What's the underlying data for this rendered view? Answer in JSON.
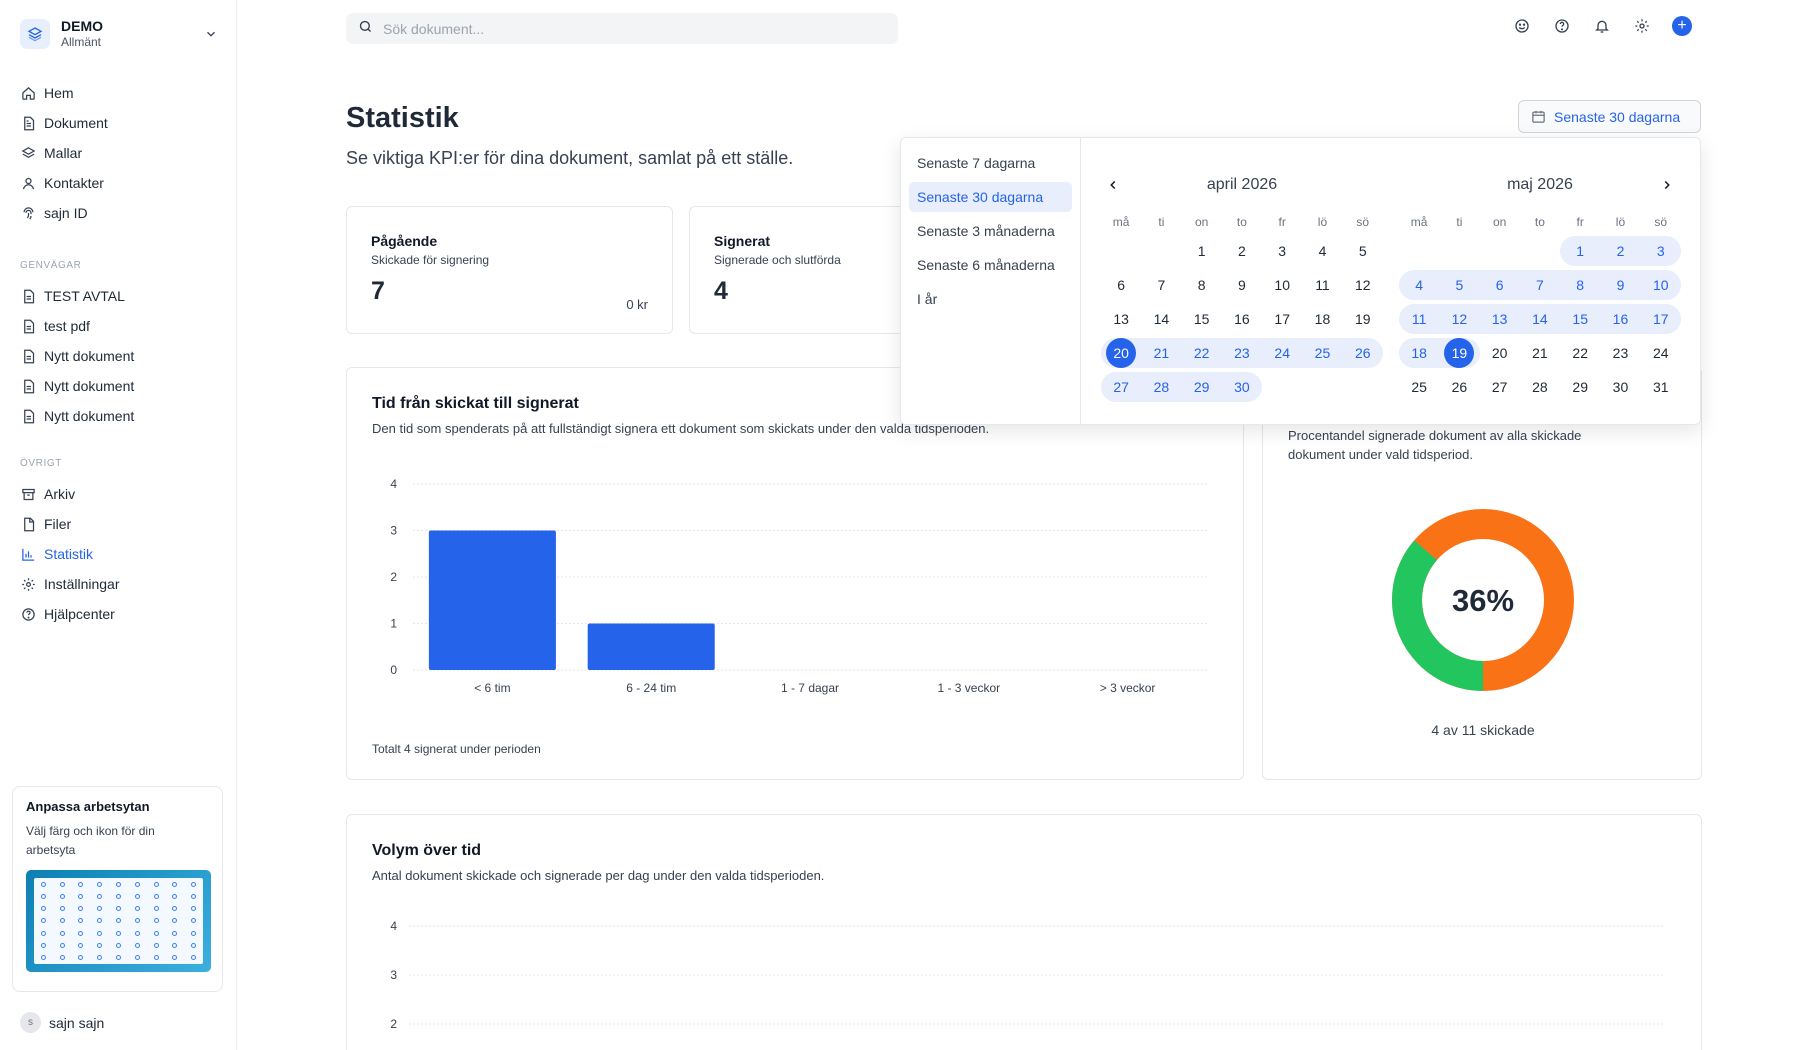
{
  "workspace": {
    "name": "DEMO",
    "subtitle": "Allmänt"
  },
  "nav": {
    "main": [
      {
        "label": "Hem",
        "icon": "home-icon"
      },
      {
        "label": "Dokument",
        "icon": "document-icon"
      },
      {
        "label": "Mallar",
        "icon": "layers-icon"
      },
      {
        "label": "Kontakter",
        "icon": "user-icon"
      },
      {
        "label": "sajn ID",
        "icon": "fingerprint-icon"
      }
    ],
    "shortcuts_title": "GENVÄGAR",
    "shortcuts": [
      {
        "label": "TEST AVTAL"
      },
      {
        "label": "test pdf"
      },
      {
        "label": "Nytt dokument"
      },
      {
        "label": "Nytt dokument"
      },
      {
        "label": "Nytt dokument"
      }
    ],
    "other_title": "ÖVRIGT",
    "other": [
      {
        "label": "Arkiv",
        "icon": "archive-icon"
      },
      {
        "label": "Filer",
        "icon": "file-icon"
      },
      {
        "label": "Statistik",
        "icon": "bar-chart-icon",
        "active": true
      },
      {
        "label": "Inställningar",
        "icon": "gear-icon"
      },
      {
        "label": "Hjälpcenter",
        "icon": "help-icon"
      }
    ]
  },
  "promo": {
    "title": "Anpassa arbetsytan",
    "text": "Välj färg och ikon för din arbetsyta"
  },
  "user": {
    "initial": "s",
    "name": "sajn sajn"
  },
  "search": {
    "placeholder": "Sök dokument..."
  },
  "page": {
    "title": "Statistik",
    "subtitle": "Se viktiga KPI:er för dina dokument, samlat på ett ställe."
  },
  "range_button": {
    "label": "Senaste 30 dagarna"
  },
  "kpis": [
    {
      "title": "Pågående",
      "subtitle": "Skickade för signering",
      "value": "7",
      "amount": "0 kr"
    },
    {
      "title": "Signerat",
      "subtitle": "Signerade och slutförda",
      "value": "4"
    }
  ],
  "time_chart": {
    "title": "Tid från skickat till signerat",
    "subtitle": "Den tid som spenderats på att fullständigt signera ett dokument som skickats under den valda tidsperioden.",
    "footer": "Totalt 4 signerat under perioden"
  },
  "donut": {
    "subtitle": "Procentandel signerade dokument av alla skickade dokument under vald tidsperiod.",
    "percent_label": "36%",
    "caption": "4 av 11 skickade",
    "signed": 4,
    "total": 11,
    "colors": {
      "signed": "#22c55e",
      "unsigned": "#f97316"
    }
  },
  "volume_chart": {
    "title": "Volym över tid",
    "subtitle": "Antal dokument skickade och signerade per dag under den valda tidsperioden.",
    "yticks": [
      "4",
      "3",
      "2"
    ]
  },
  "chart_data": {
    "type": "bar",
    "title": "Tid från skickat till signerat",
    "categories": [
      "< 6 tim",
      "6 - 24 tim",
      "1 - 7 dagar",
      "1 - 3 veckor",
      "> 3 veckor"
    ],
    "values": [
      3,
      1,
      0,
      0,
      0
    ],
    "yticks": [
      "0",
      "1",
      "2",
      "3",
      "4"
    ],
    "ylim": [
      0,
      4
    ],
    "color": "#2563eb",
    "grid": true
  },
  "picker": {
    "presets": [
      {
        "label": "Senaste 7 dagarna"
      },
      {
        "label": "Senaste 30 dagarna",
        "active": true
      },
      {
        "label": "Senaste 3 månaderna"
      },
      {
        "label": "Senaste 6 månaderna"
      },
      {
        "label": "I år"
      }
    ],
    "weekdays": [
      "må",
      "ti",
      "on",
      "to",
      "fr",
      "lö",
      "sö"
    ],
    "months": [
      {
        "title": "april 2026",
        "weeks": [
          [
            "",
            "",
            "1",
            "2",
            "3",
            "4",
            "5"
          ],
          [
            "6",
            "7",
            "8",
            "9",
            "10",
            "11",
            "12"
          ],
          [
            "13",
            "14",
            "15",
            "16",
            "17",
            "18",
            "19"
          ],
          [
            "20",
            "21",
            "22",
            "23",
            "24",
            "25",
            "26"
          ],
          [
            "27",
            "28",
            "29",
            "30",
            "",
            "",
            ""
          ]
        ]
      },
      {
        "title": "maj 2026",
        "weeks": [
          [
            "",
            "",
            "",
            "",
            "1",
            "2",
            "3"
          ],
          [
            "4",
            "5",
            "6",
            "7",
            "8",
            "9",
            "10"
          ],
          [
            "11",
            "12",
            "13",
            "14",
            "15",
            "16",
            "17"
          ],
          [
            "18",
            "19",
            "20",
            "21",
            "22",
            "23",
            "24"
          ],
          [
            "25",
            "26",
            "27",
            "28",
            "29",
            "30",
            "31"
          ]
        ]
      }
    ],
    "range_start": {
      "month": 0,
      "day": "20"
    },
    "range_end": {
      "month": 1,
      "day": "19"
    }
  }
}
